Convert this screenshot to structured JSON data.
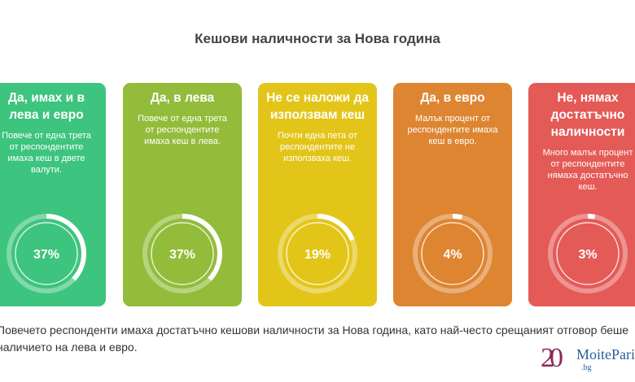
{
  "chart_data": {
    "type": "donut",
    "title": "Кешови наличности за Нова година",
    "categories": [
      {
        "label": "Да, имах и в лева и евро",
        "description": "Повече от една трета от респондентите имаха кеш в двете валути.",
        "value": 37,
        "value_label": "37%",
        "color": "#3DC47E"
      },
      {
        "label": "Да, в лева",
        "description": "Повече от една трета от респондентите имаха кеш в лева.",
        "value": 37,
        "value_label": "37%",
        "color": "#93BC3A"
      },
      {
        "label": "Не се наложи да използвам кеш",
        "description": "Почти една пета от респондентите не използваха кеш.",
        "value": 19,
        "value_label": "19%",
        "color": "#E3C51A"
      },
      {
        "label": "Да, в евро",
        "description": "Малък процент от респондентите имаха кеш в евро.",
        "value": 4,
        "value_label": "4%",
        "color": "#DE8531"
      },
      {
        "label": "Не, нямах достатъчно наличности",
        "description": "Много малък процент от респондентите нямаха достатъчно кеш.",
        "value": 3,
        "value_label": "3%",
        "color": "#E45A57"
      }
    ]
  },
  "summary": "Повечето респонденти имаха достатъчно кешови наличности за Нова година, като най-често срещаният отговор беше наличието на лева и евро.",
  "logo": {
    "number": "20",
    "word": "MoitePari",
    "domain": ".bg"
  }
}
